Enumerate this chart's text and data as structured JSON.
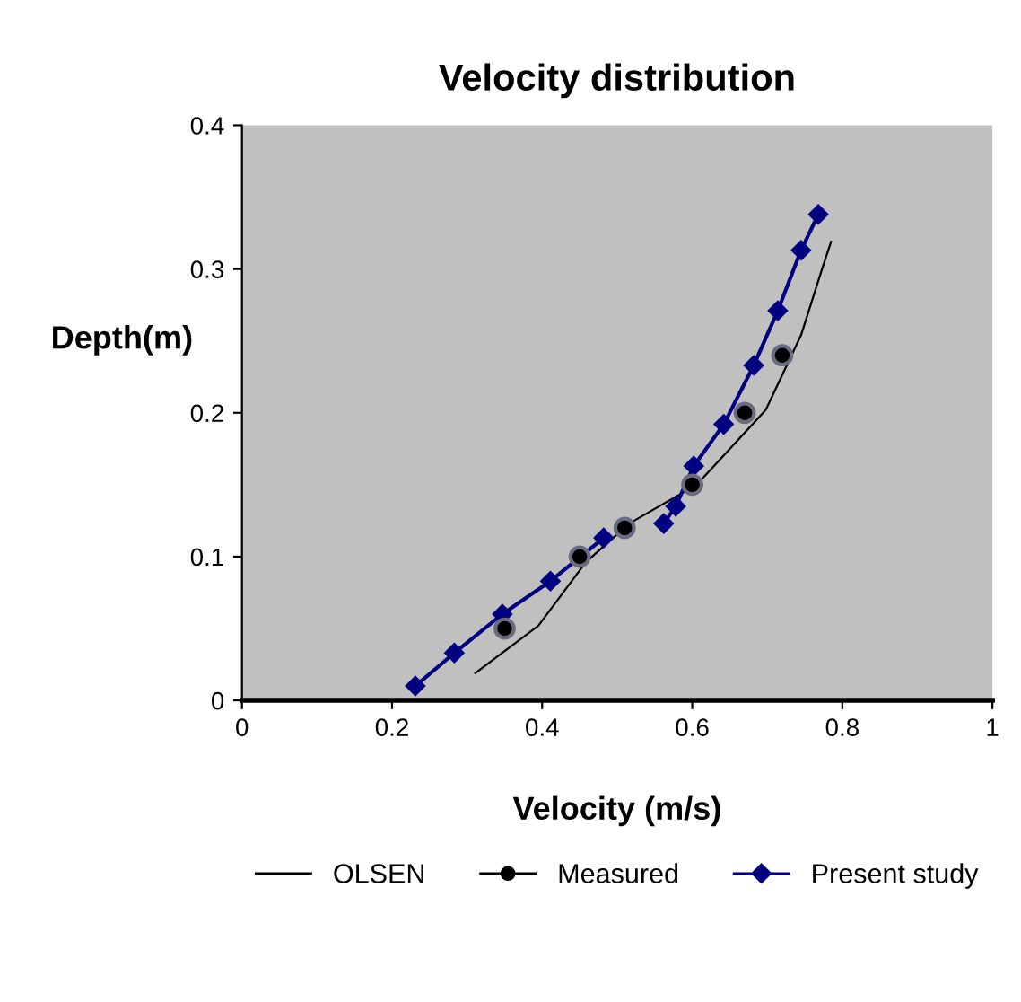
{
  "chart_data": {
    "type": "line",
    "title": "Velocity distribution",
    "xlabel": "Velocity (m/s)",
    "ylabel": "Depth(m)",
    "xlim": [
      0,
      1
    ],
    "ylim": [
      0,
      0.4
    ],
    "xticks": [
      0,
      0.2,
      0.4,
      0.6,
      0.8,
      1
    ],
    "yticks": [
      0,
      0.1,
      0.2,
      0.3,
      0.4
    ],
    "grid": false,
    "legend": "bottom",
    "series": [
      {
        "name": "OLSEN",
        "color": "#000000",
        "marker": "none",
        "x": [
          0.311,
          0.395,
          0.458,
          0.516,
          0.606,
          0.698,
          0.745,
          0.773,
          0.785
        ],
        "values": [
          0.019,
          0.052,
          0.096,
          0.123,
          0.15,
          0.202,
          0.254,
          0.3,
          0.319
        ]
      },
      {
        "name": "Measured",
        "type": "scatter",
        "color": "#000000",
        "marker": "circle",
        "x": [
          0.35,
          0.45,
          0.51,
          0.6,
          0.67,
          0.72
        ],
        "values": [
          0.05,
          0.1,
          0.12,
          0.15,
          0.2,
          0.24
        ]
      },
      {
        "name": "Present study",
        "color": "#000080",
        "marker": "diamond",
        "x": [
          0.231,
          0.283,
          0.347,
          0.411,
          0.482,
          0.506,
          0.562,
          0.578,
          0.602,
          0.642,
          0.682,
          0.714,
          0.745,
          0.768
        ],
        "values": [
          0.01,
          0.033,
          0.06,
          0.083,
          0.113,
          null,
          0.123,
          0.135,
          0.163,
          0.192,
          0.233,
          0.271,
          0.313,
          0.338
        ]
      }
    ]
  }
}
